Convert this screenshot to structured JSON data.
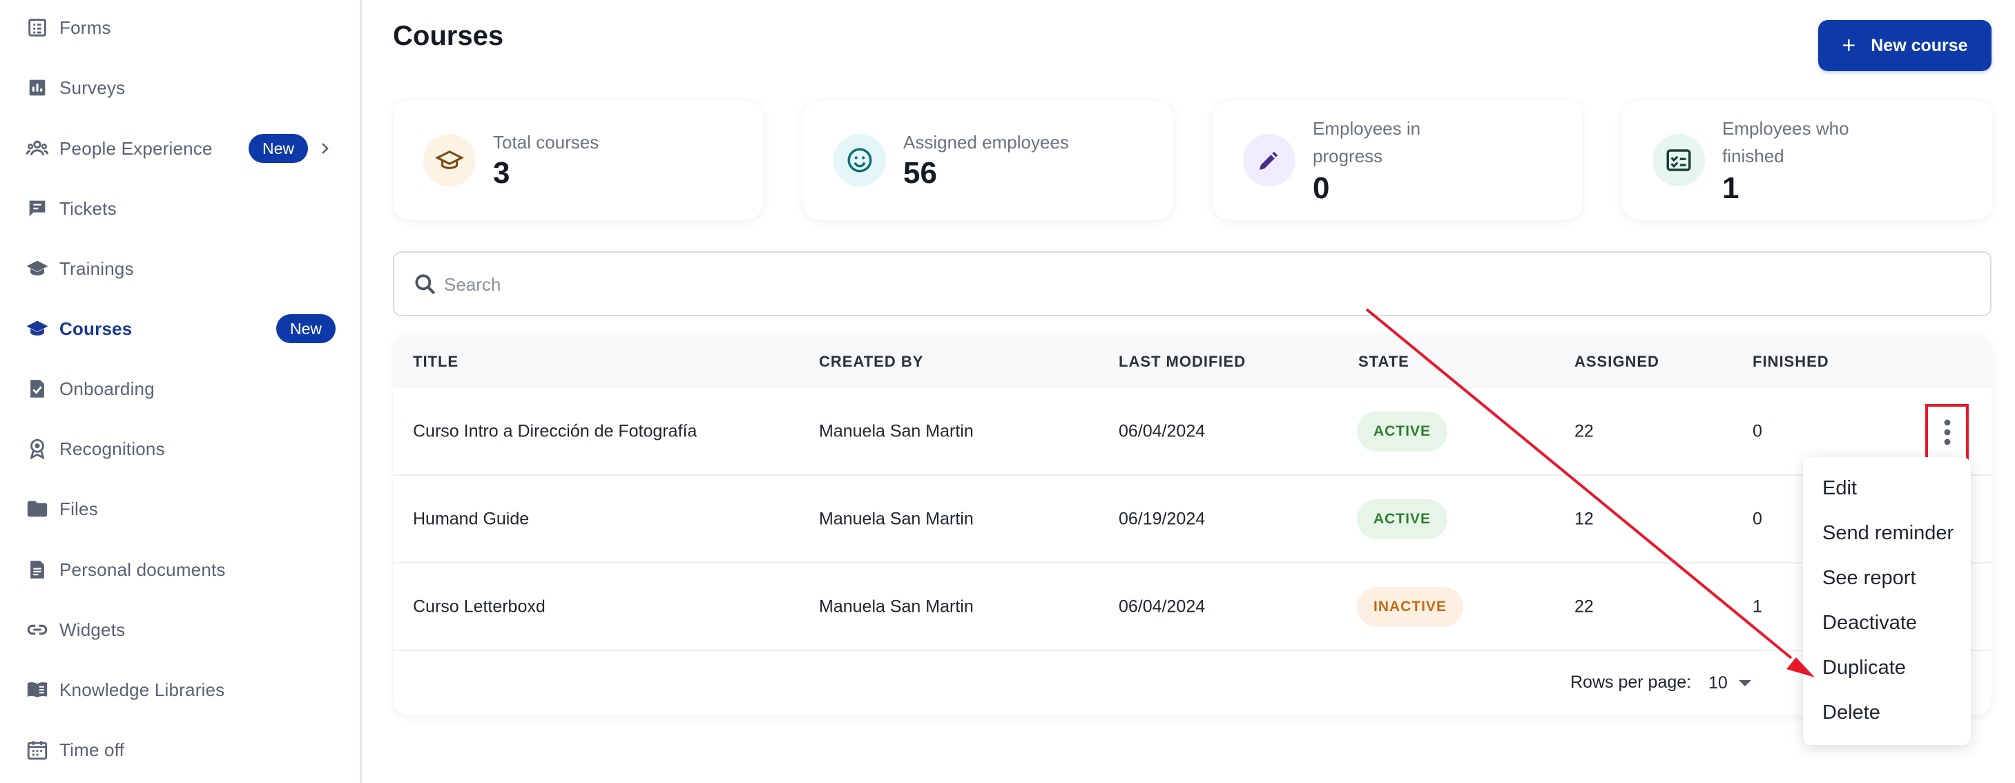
{
  "sidebar": {
    "items": [
      {
        "label": "Forms",
        "icon": "form-icon"
      },
      {
        "label": "Surveys",
        "icon": "bar-chart-icon"
      },
      {
        "label": "People Experience",
        "icon": "people-icon",
        "badge": "New"
      },
      {
        "label": "Tickets",
        "icon": "ticket-icon"
      },
      {
        "label": "Trainings",
        "icon": "graduation-cap-icon"
      },
      {
        "label": "Courses",
        "icon": "graduation-cap-icon",
        "badge": "New"
      },
      {
        "label": "Onboarding",
        "icon": "onboarding-icon"
      },
      {
        "label": "Recognitions",
        "icon": "medal-icon"
      },
      {
        "label": "Files",
        "icon": "folder-icon"
      },
      {
        "label": "Personal documents",
        "icon": "document-icon"
      },
      {
        "label": "Widgets",
        "icon": "link-icon"
      },
      {
        "label": "Knowledge Libraries",
        "icon": "book-icon"
      },
      {
        "label": "Time off",
        "icon": "calendar-icon"
      }
    ]
  },
  "header": {
    "title": "Courses",
    "new_button": "New course"
  },
  "stats": [
    {
      "label": "Total courses",
      "value": "3",
      "icon": "graduation-cap-icon"
    },
    {
      "label": "Assigned employees",
      "value": "56",
      "icon": "smiley-icon"
    },
    {
      "label": "Employees in progress",
      "value": "0",
      "icon": "pencil-icon"
    },
    {
      "label": "Employees who finished",
      "value": "1",
      "icon": "checklist-icon"
    }
  ],
  "search": {
    "placeholder": "Search"
  },
  "table": {
    "columns": [
      "TITLE",
      "CREATED BY",
      "LAST MODIFIED",
      "STATE",
      "ASSIGNED",
      "FINISHED"
    ],
    "rows": [
      {
        "title": "Curso Intro a Dirección de Fotografía",
        "created_by": "Manuela San Martin",
        "last_modified": "06/04/2024",
        "state": "ACTIVE",
        "assigned": "22",
        "finished": "0"
      },
      {
        "title": "Humand Guide",
        "created_by": "Manuela San Martin",
        "last_modified": "06/19/2024",
        "state": "ACTIVE",
        "assigned": "12",
        "finished": "0"
      },
      {
        "title": "Curso Letterboxd",
        "created_by": "Manuela San Martin",
        "last_modified": "06/04/2024",
        "state": "INACTIVE",
        "assigned": "22",
        "finished": "1"
      }
    ],
    "pagination": {
      "rows_per_page_label": "Rows per page:",
      "rows_per_page": "10"
    }
  },
  "row_menu": {
    "items": [
      "Edit",
      "Send reminder",
      "See report",
      "Deactivate",
      "Duplicate",
      "Delete"
    ]
  },
  "colors": {
    "primary": "#0d3aa8",
    "active_nav": "#1a3a94",
    "badge_active_bg": "#e6f5e8",
    "badge_active_text": "#2e7d32",
    "badge_inactive_bg": "#fdf0e2",
    "badge_inactive_text": "#c46a10",
    "annotation": "#e8182a"
  }
}
